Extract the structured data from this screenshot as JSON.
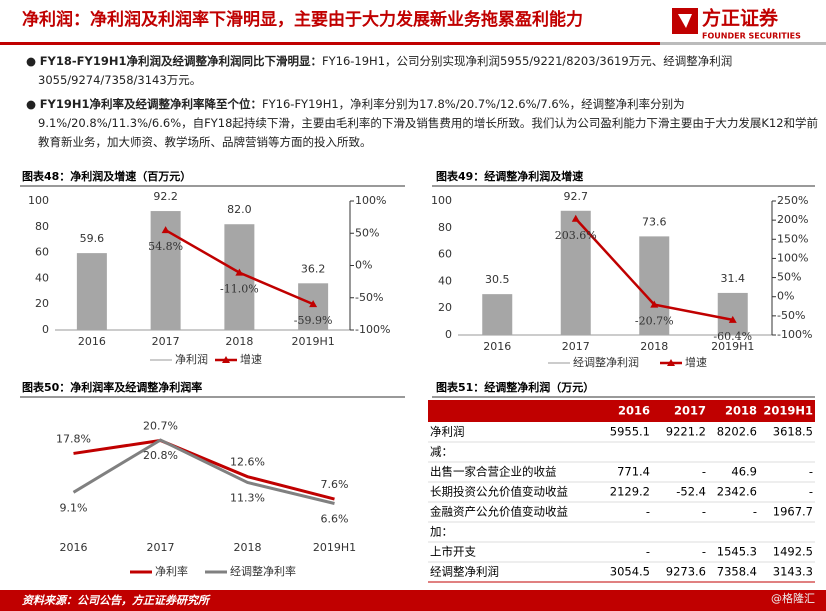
{
  "header": {
    "title": "净利润：净利润及利润率下滑明显，主要由于大力发展新业务拖累盈利能力",
    "logo_name": "方正证券",
    "logo_sub": "FOUNDER SECURITIES"
  },
  "bullets": [
    {
      "bold": "FY18-FY19H1净利润及经调整净利润同比下滑明显：",
      "text": "FY16-19H1，公司分别实现净利润5955/9221/8203/3619万元、经调整净利润3055/9274/7358/3143万元。"
    },
    {
      "bold": "FY19H1净利率及经调整净利率降至个位：",
      "text": "FY16-FY19H1，净利率分别为17.8%/20.7%/12.6%/7.6%，经调整净利率分别为9.1%/20.8%/11.3%/6.6%，自FY18起持续下滑，主要由毛利率的下滑及销售费用的增长所致。我们认为公司盈利能力下滑主要由于大力发展K12和学前教育新业务，加大师资、教学场所、品牌营销等方面的投入所致。"
    }
  ],
  "chart_data": [
    {
      "type": "bar_line",
      "title": "图表48：净利润及增速（百万元）",
      "categories": [
        "2016",
        "2017",
        "2018",
        "2019H1"
      ],
      "series": [
        {
          "name": "净利润",
          "color": "#a6a6a6",
          "values": [
            59.6,
            92.2,
            82.0,
            36.2
          ],
          "value_labels": [
            "59.6",
            "92.2",
            "82.0",
            "36.2"
          ]
        },
        {
          "name": "增速",
          "color": "#c00000",
          "axis": "y2",
          "values": [
            null,
            54.8,
            -11.0,
            -59.9
          ],
          "value_labels": [
            null,
            "54.8%",
            "-11.0%",
            "-59.9%"
          ]
        }
      ],
      "ylim": [
        0,
        100
      ],
      "yticks": [
        0,
        20,
        40,
        60,
        80,
        100
      ],
      "y2lim": [
        -100,
        100
      ],
      "y2ticks": [
        {
          "value": -100,
          "label": "-100%"
        },
        {
          "value": -50,
          "label": "-50%"
        },
        {
          "value": 0,
          "label": "0%"
        },
        {
          "value": 50,
          "label": "50%"
        },
        {
          "value": 100,
          "label": "100%"
        }
      ]
    },
    {
      "type": "bar_line",
      "title": "图表49：经调整净利润及增速",
      "categories": [
        "2016",
        "2017",
        "2018",
        "2019H1"
      ],
      "series": [
        {
          "name": "经调整净利润",
          "color": "#a6a6a6",
          "values": [
            30.5,
            92.7,
            73.6,
            31.4
          ]
        },
        {
          "name": "增速",
          "color": "#c00000",
          "axis": "y2",
          "values": [
            null,
            203.6,
            -20.7,
            -60.4
          ],
          "value_labels": [
            null,
            "203.6%",
            "-20.7%",
            "-60.4%"
          ]
        }
      ],
      "ylim": [
        0,
        100
      ],
      "yticks": [
        0,
        20,
        40,
        60,
        80,
        100
      ],
      "y2lim": [
        -100,
        250
      ],
      "y2ticks": [
        {
          "value": -100,
          "label": "-100%"
        },
        {
          "value": -50,
          "label": "-50%"
        },
        {
          "value": 0,
          "label": "0%"
        },
        {
          "value": 50,
          "label": "50%"
        },
        {
          "value": 100,
          "label": "100%"
        },
        {
          "value": 150,
          "label": "150%"
        },
        {
          "value": 200,
          "label": "200%"
        },
        {
          "value": 250,
          "label": "250%"
        }
      ]
    },
    {
      "type": "line",
      "title": "图表50：净利润率及经调整净利润率",
      "categories": [
        "2016",
        "2017",
        "2018",
        "2019H1"
      ],
      "series": [
        {
          "name": "净利率",
          "color": "#c00000",
          "values": [
            17.8,
            20.7,
            12.6,
            7.6
          ],
          "value_labels": [
            "17.8%",
            "20.7%",
            "12.6%",
            "7.6%"
          ]
        },
        {
          "name": "经调整净利率",
          "color": "#808080",
          "values": [
            9.1,
            20.8,
            11.3,
            6.6
          ],
          "value_labels": [
            "9.1%",
            "20.8%",
            "11.3%",
            "6.6%"
          ]
        }
      ]
    }
  ],
  "table": {
    "title": "图表51：经调整净利润（万元）",
    "columns": [
      "2016",
      "2017",
      "2018",
      "2019H1"
    ],
    "rows": [
      [
        "净利润",
        "5955.1",
        "9221.2",
        "8202.6",
        "3618.5"
      ],
      [
        "减："
      ],
      [
        "出售一家合营企业的收益",
        "771.4",
        "-",
        "46.9",
        "-"
      ],
      [
        "长期投资公允价值变动收益",
        "2129.2",
        "-52.4",
        "2342.6",
        "-"
      ],
      [
        "金融资产公允价值变动收益",
        "-",
        "-",
        "-",
        "1967.7"
      ],
      [
        "加："
      ],
      [
        "上市开支",
        "-",
        "-",
        "1545.3",
        "1492.5"
      ],
      [
        "经调整净利润",
        "3054.5",
        "9273.6",
        "7358.4",
        "3143.3"
      ]
    ]
  },
  "footer": {
    "source": "资料来源：公司公告，方正证券研究所",
    "watermark": "@格隆汇"
  }
}
